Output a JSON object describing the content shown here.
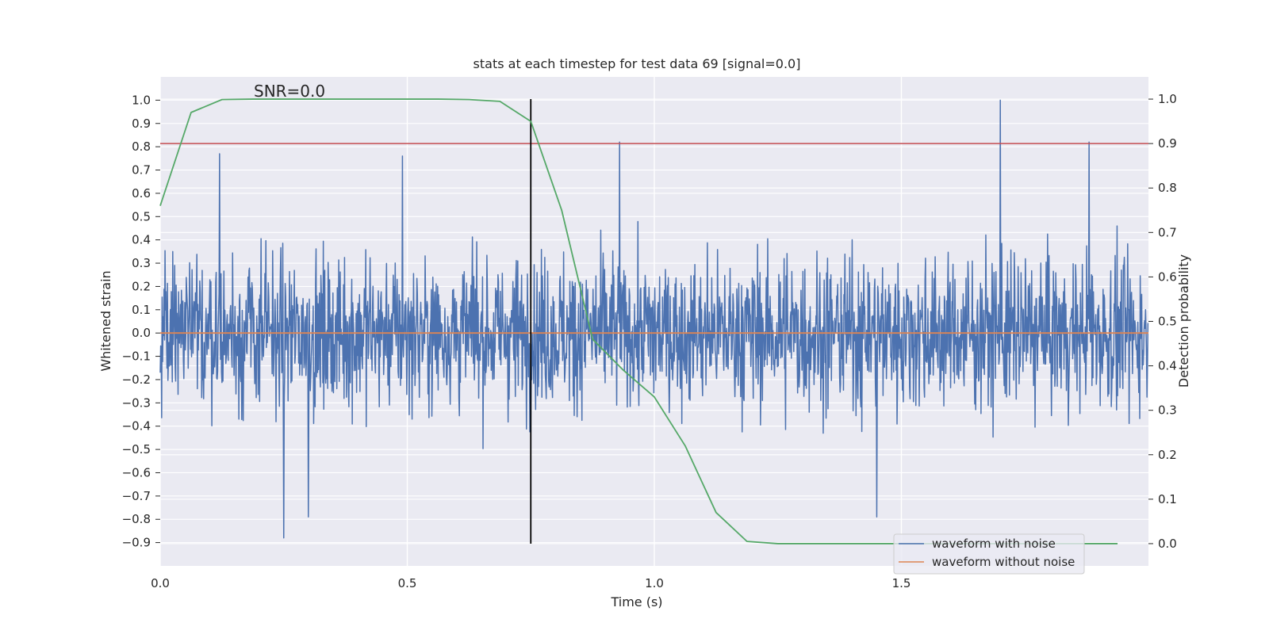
{
  "chart_data": {
    "type": "line",
    "title": "stats at each timestep for test data 69 [signal=0.0]",
    "annotation": "SNR=0.0",
    "xlabel": "Time (s)",
    "ylabel_left": "Whitened strain",
    "ylabel_right": "Detection probability",
    "xlim": [
      0.0,
      2.0
    ],
    "ylim_left": [
      -1.0,
      1.1
    ],
    "ylim_right": [
      -0.05,
      1.05
    ],
    "x_ticks": [
      "0.0",
      "0.5",
      "1.0",
      "1.5"
    ],
    "x_tick_values": [
      0.0,
      0.5,
      1.0,
      1.5
    ],
    "y_left_ticks": [
      "−0.9",
      "−0.8",
      "−0.7",
      "−0.6",
      "−0.5",
      "−0.4",
      "−0.3",
      "−0.2",
      "−0.1",
      "0.0",
      "0.1",
      "0.2",
      "0.3",
      "0.4",
      "0.5",
      "0.6",
      "0.7",
      "0.8",
      "0.9",
      "1.0"
    ],
    "y_left_tick_values": [
      -0.9,
      -0.8,
      -0.7,
      -0.6,
      -0.5,
      -0.4,
      -0.3,
      -0.2,
      -0.1,
      0.0,
      0.1,
      0.2,
      0.3,
      0.4,
      0.5,
      0.6,
      0.7,
      0.8,
      0.9,
      1.0
    ],
    "y_right_ticks": [
      "0.0",
      "0.1",
      "0.2",
      "0.3",
      "0.4",
      "0.5",
      "0.6",
      "0.7",
      "0.8",
      "0.9",
      "1.0"
    ],
    "y_right_tick_values": [
      0.0,
      0.1,
      0.2,
      0.3,
      0.4,
      0.5,
      0.6,
      0.7,
      0.8,
      0.9,
      1.0
    ],
    "grid": true,
    "legend_position": "lower-right",
    "series": [
      {
        "name": "waveform with noise",
        "axis": "left",
        "color": "#4c72b0",
        "kind": "noise",
        "t_range": [
          0.0,
          1.999
        ],
        "sample_count": 2048,
        "amplitude_typical": 0.3,
        "min_value": -0.88,
        "max_value": 1.0,
        "peaks": [
          [
            0.25,
            -0.88
          ],
          [
            0.93,
            0.82
          ],
          [
            1.7,
            1.0
          ],
          [
            1.88,
            0.82
          ],
          [
            0.12,
            0.77
          ],
          [
            0.49,
            0.76
          ],
          [
            1.45,
            -0.79
          ],
          [
            0.3,
            -0.79
          ]
        ]
      },
      {
        "name": "waveform without noise",
        "axis": "left",
        "color": "#dd8452",
        "x": [
          0.0,
          2.0
        ],
        "y": [
          0.0,
          0.0
        ]
      },
      {
        "name": "detection probability",
        "axis": "right",
        "color": "#55a868",
        "x": [
          0.0,
          0.0625,
          0.125,
          0.1875,
          0.25,
          0.3125,
          0.375,
          0.4375,
          0.5,
          0.5625,
          0.625,
          0.6875,
          0.75,
          0.8125,
          0.875,
          0.9375,
          1.0,
          1.0625,
          1.125,
          1.1875,
          1.25,
          1.3125,
          1.375,
          1.4375,
          1.5,
          1.5625,
          1.625,
          1.6875,
          1.75,
          1.8125,
          1.875,
          1.9375
        ],
        "y": [
          0.76,
          0.97,
          0.999,
          1.0,
          1.0,
          1.0,
          1.0,
          1.0,
          1.0,
          1.0,
          0.999,
          0.995,
          0.95,
          0.75,
          0.46,
          0.39,
          0.33,
          0.22,
          0.07,
          0.005,
          0.0,
          0.0,
          0.0,
          0.0,
          0.0,
          0.0,
          0.0,
          0.0,
          0.0,
          0.0,
          0.0,
          0.0
        ]
      }
    ],
    "hlines": [
      {
        "axis": "right",
        "y": 0.9,
        "color": "#c44e52"
      }
    ],
    "vlines": [
      {
        "axis": "right",
        "x": 0.75,
        "y_range": [
          0.0,
          1.0
        ],
        "color": "#000000"
      }
    ]
  }
}
